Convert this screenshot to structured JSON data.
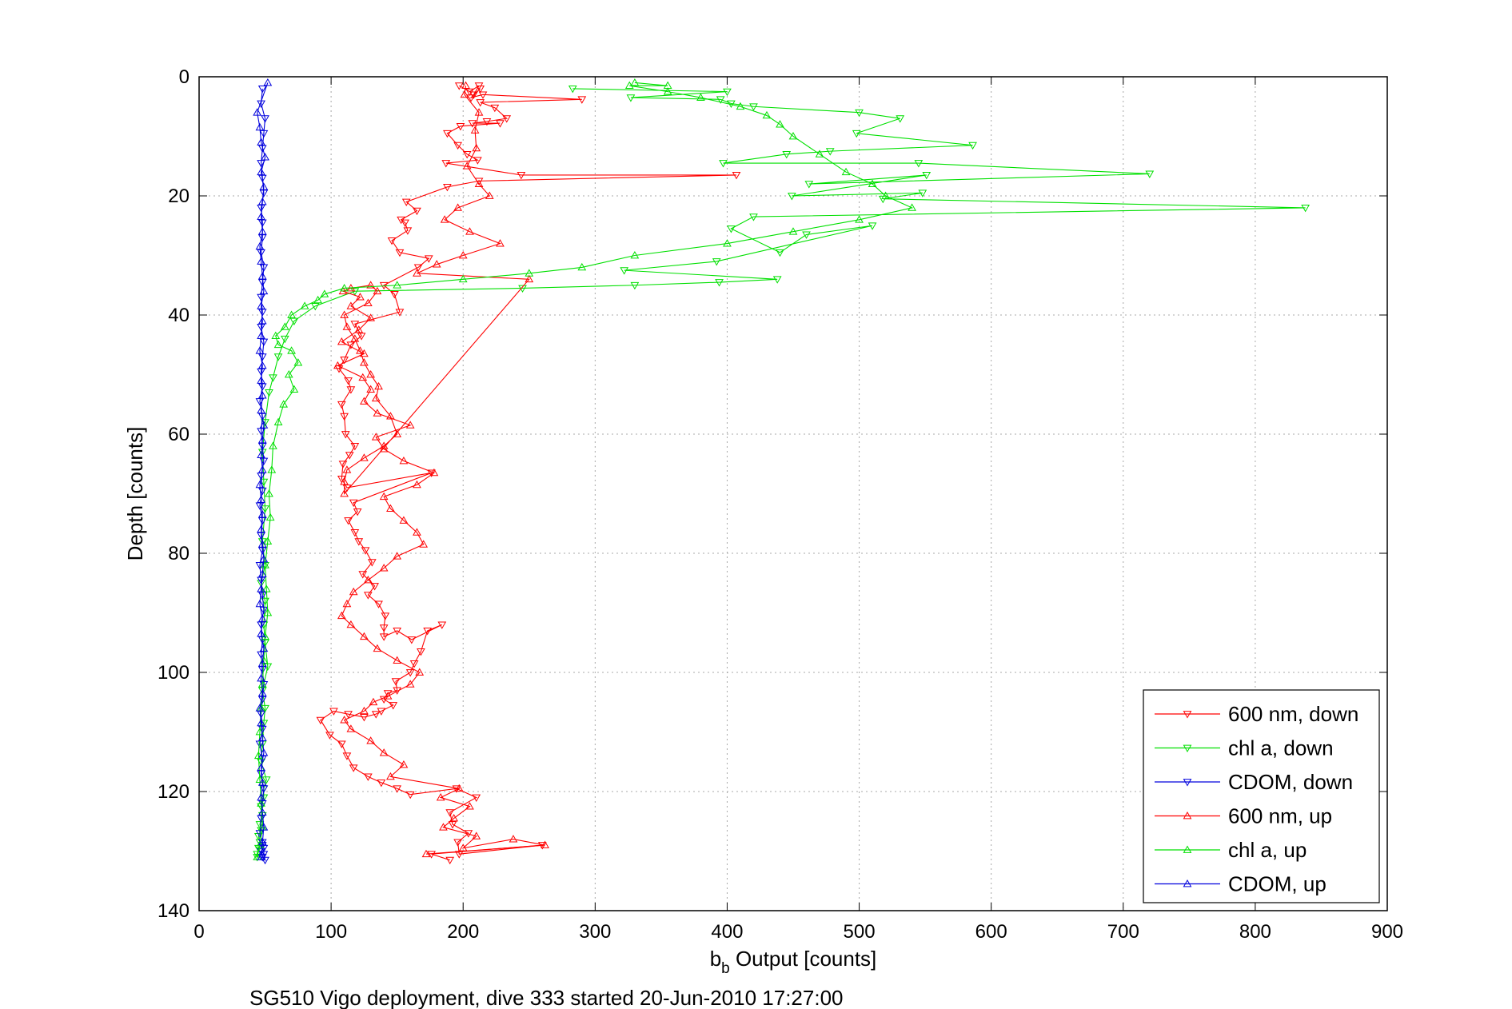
{
  "chart_data": {
    "type": "line",
    "title": "",
    "xlabel_main": "b",
    "xlabel_sub": "b",
    "xlabel_rest": " Output [counts]",
    "ylabel": "Depth [counts]",
    "caption": "SG510 Vigo deployment, dive 333 started 20-Jun-2010 17:27:00",
    "xlim": [
      0,
      900
    ],
    "ylim": [
      140,
      0
    ],
    "y_reversed": true,
    "grid": true,
    "legend_position": "bottom-right",
    "xticks": [
      0,
      100,
      200,
      300,
      400,
      500,
      600,
      700,
      800,
      900
    ],
    "yticks": [
      0,
      20,
      40,
      60,
      80,
      100,
      120,
      140
    ],
    "xtick_labels": [
      "0",
      "100",
      "200",
      "300",
      "400",
      "500",
      "600",
      "700",
      "800",
      "900"
    ],
    "ytick_labels": [
      "0",
      "20",
      "40",
      "60",
      "80",
      "100",
      "120",
      "140"
    ],
    "series": [
      {
        "name": "600 nm, down",
        "color": "#ff0000",
        "marker": "triangle-down",
        "x": [
          197,
          205,
          212,
          208,
          213,
          206,
          215,
          290,
          213,
          224,
          233,
          218,
          207,
          228,
          198,
          188,
          196,
          203,
          211,
          187,
          244,
          407,
          212,
          188,
          157,
          165,
          153,
          156,
          158,
          146,
          152,
          174,
          166,
          140,
          148,
          152,
          118,
          123,
          115,
          110,
          106,
          113,
          115,
          108,
          110,
          111,
          118,
          114,
          109,
          108,
          112,
          176,
          117,
          120,
          113,
          118,
          121,
          126,
          131,
          124,
          133,
          128,
          136,
          141,
          140,
          140,
          150,
          161,
          184,
          173,
          168,
          163,
          160,
          149,
          150,
          143,
          140,
          147,
          138,
          134,
          125,
          113,
          102,
          92,
          99,
          108,
          112,
          117,
          128,
          138,
          150,
          160,
          195,
          210,
          190,
          192,
          204,
          196,
          197,
          260,
          176,
          190
        ],
        "y": [
          1.5,
          2.5,
          1.5,
          3.0,
          2.0,
          3.5,
          3.0,
          3.8,
          4.3,
          5.2,
          7.0,
          7.5,
          7.8,
          7.8,
          8.3,
          9.5,
          11.5,
          13.0,
          14.0,
          14.5,
          16.5,
          16.5,
          17.5,
          18.5,
          21.0,
          22.5,
          24.0,
          24.5,
          25.8,
          27.5,
          29.5,
          30.5,
          32.0,
          35.0,
          36.5,
          39.5,
          41.5,
          43.5,
          45.0,
          47.5,
          49.0,
          51.0,
          52.5,
          55.0,
          57.0,
          60.0,
          62.0,
          63.5,
          65.0,
          67.5,
          69.0,
          66.5,
          71.5,
          73.0,
          74.5,
          76.5,
          78.0,
          79.5,
          81.5,
          83.5,
          85.5,
          87.0,
          88.5,
          90.5,
          92.5,
          94.0,
          93.0,
          94.5,
          92.0,
          93.0,
          96.5,
          98.5,
          100.0,
          101.5,
          103.0,
          103.5,
          104.5,
          105.5,
          106.5,
          107.0,
          107.5,
          107.0,
          106.5,
          108.0,
          110.5,
          112.0,
          114.0,
          116.0,
          117.5,
          118.5,
          119.5,
          120.5,
          119.5,
          121.0,
          123.5,
          125.5,
          127.0,
          128.5,
          130.5,
          129.0,
          130.5,
          131.5
        ]
      },
      {
        "name": "chl a, down",
        "color": "#00e000",
        "marker": "triangle-down",
        "x": [
          283,
          400,
          327,
          395,
          403,
          420,
          500,
          531,
          498,
          586,
          478,
          445,
          397,
          545,
          720,
          462,
          551,
          449,
          548,
          518,
          838,
          420,
          403,
          440,
          460,
          510,
          392,
          322,
          438,
          394,
          330,
          245,
          118,
          88,
          72,
          65,
          60,
          56,
          53,
          50,
          48,
          49,
          50,
          48,
          50,
          47,
          50,
          49,
          50,
          52,
          48,
          50,
          49,
          48,
          47,
          51,
          49,
          49,
          47,
          48,
          46,
          47,
          45,
          46,
          45,
          44,
          44
        ],
        "y": [
          2.0,
          2.5,
          3.5,
          3.8,
          4.5,
          5.0,
          6.0,
          7.0,
          9.5,
          11.5,
          12.5,
          13.0,
          14.5,
          14.5,
          16.3,
          18.0,
          16.5,
          20.0,
          19.5,
          20.5,
          22.0,
          23.5,
          25.5,
          29.5,
          26.5,
          25.0,
          31.0,
          32.5,
          34.0,
          34.5,
          35.0,
          35.5,
          36.0,
          38.5,
          41.0,
          44.0,
          47.0,
          50.5,
          53.0,
          58.0,
          63.0,
          68.0,
          72.5,
          78.0,
          82.0,
          85.0,
          88.0,
          92.0,
          95.0,
          99.0,
          103.0,
          106.0,
          108.5,
          112.0,
          115.0,
          118.0,
          119.5,
          121.0,
          122.5,
          124.0,
          125.5,
          126.5,
          127.5,
          128.5,
          129.5,
          130.5,
          131.0
        ]
      },
      {
        "name": "CDOM, down",
        "color": "#0000dd",
        "marker": "triangle-down",
        "x": [
          48,
          47,
          50,
          49,
          48,
          47,
          48,
          49,
          47,
          48,
          48,
          47,
          49,
          48,
          47,
          48,
          47,
          49,
          48,
          47,
          48,
          46,
          48,
          47,
          48,
          49,
          47,
          48,
          46,
          48,
          47,
          48,
          46,
          47,
          48,
          49,
          47,
          48,
          47,
          48,
          49,
          48,
          47,
          48,
          46,
          48,
          47,
          49,
          48,
          47,
          46,
          48,
          49,
          47,
          49,
          48,
          50,
          48
        ],
        "y": [
          2.0,
          4.5,
          7.0,
          9.5,
          12.0,
          14.5,
          17.0,
          19.5,
          22.0,
          24.5,
          27.0,
          29.5,
          32.0,
          34.5,
          37.0,
          39.5,
          42.0,
          44.5,
          47.0,
          49.5,
          52.0,
          54.5,
          57.0,
          59.5,
          62.0,
          64.5,
          67.0,
          69.5,
          72.0,
          74.5,
          77.0,
          79.5,
          82.0,
          84.5,
          87.0,
          89.5,
          92.0,
          94.5,
          97.0,
          99.5,
          102.0,
          104.5,
          107.0,
          109.5,
          112.0,
          114.5,
          117.0,
          119.5,
          122.0,
          124.5,
          127.0,
          128.5,
          129.5,
          130.0,
          130.5,
          131.0,
          131.5,
          129.0
        ]
      },
      {
        "name": "600 nm, up",
        "color": "#ff0000",
        "marker": "triangle-up",
        "x": [
          172,
          262,
          238,
          200,
          210,
          185,
          193,
          205,
          183,
          197,
          145,
          155,
          140,
          130,
          115,
          110,
          125,
          132,
          143,
          160,
          167,
          150,
          135,
          125,
          115,
          108,
          112,
          117,
          128,
          140,
          150,
          170,
          165,
          155,
          145,
          140,
          165,
          178,
          155,
          140,
          134,
          160,
          135,
          125,
          130,
          124,
          105,
          125,
          108,
          121,
          130,
          115,
          122,
          109,
          115,
          130,
          135,
          128,
          110,
          112,
          118,
          122,
          125,
          130,
          136,
          134,
          145,
          150,
          140,
          125,
          112,
          110,
          110,
          250,
          165,
          180,
          200,
          228,
          205,
          186,
          196,
          220,
          212,
          203,
          210,
          209,
          212,
          201,
          202
        ],
        "y": [
          130.5,
          129.0,
          128.0,
          129.5,
          127.5,
          126.0,
          124.5,
          122.5,
          121.0,
          119.5,
          117.5,
          115.5,
          113.5,
          111.5,
          109.5,
          108.0,
          106.5,
          105.0,
          104.0,
          102.0,
          100.0,
          98.0,
          96.0,
          94.0,
          92.0,
          90.5,
          88.5,
          86.5,
          84.5,
          82.5,
          80.5,
          78.5,
          76.5,
          74.5,
          72.5,
          70.5,
          68.5,
          66.5,
          64.5,
          62.5,
          60.5,
          58.5,
          56.5,
          54.5,
          52.5,
          50.5,
          48.5,
          46.5,
          44.5,
          42.5,
          40.5,
          38.5,
          37.0,
          36.0,
          35.5,
          35.0,
          36.0,
          38.0,
          40.0,
          42.0,
          44.0,
          46.0,
          48.0,
          50.0,
          52.0,
          54.0,
          57.0,
          60.0,
          62.0,
          64.0,
          66.0,
          68.0,
          70.0,
          34.0,
          33.0,
          31.5,
          30.0,
          28.0,
          26.0,
          24.0,
          22.0,
          20.0,
          18.0,
          15.0,
          12.0,
          9.0,
          6.0,
          3.0,
          1.5
        ]
      },
      {
        "name": "chl a, up",
        "color": "#00e000",
        "marker": "triangle-up",
        "x": [
          44,
          46,
          48,
          47,
          46,
          45,
          46,
          47,
          48,
          49,
          50,
          52,
          51,
          50,
          52,
          54,
          53,
          55,
          56,
          60,
          64,
          72,
          68,
          75,
          70,
          60,
          58,
          65,
          70,
          80,
          90,
          95,
          110,
          150,
          200,
          250,
          290,
          330,
          400,
          450,
          500,
          540,
          520,
          510,
          490,
          470,
          450,
          440,
          430,
          410,
          380,
          355,
          326,
          355,
          330
        ],
        "y": [
          131.0,
          129.0,
          126.0,
          122.0,
          118.0,
          114.0,
          110.0,
          106.0,
          102.0,
          98.0,
          94.0,
          90.0,
          86.0,
          82.0,
          78.0,
          74.0,
          70.0,
          66.0,
          62.0,
          58.0,
          55.0,
          52.5,
          50.0,
          48.0,
          46.0,
          45.0,
          43.5,
          42.0,
          40.0,
          38.5,
          37.5,
          36.5,
          35.5,
          35.0,
          34.0,
          33.0,
          32.0,
          30.0,
          28.0,
          26.0,
          24.0,
          22.0,
          20.0,
          18.0,
          16.0,
          13.0,
          10.0,
          8.0,
          6.5,
          5.0,
          3.5,
          2.5,
          1.5,
          1.5,
          1.0
        ]
      },
      {
        "name": "CDOM, up",
        "color": "#0000dd",
        "marker": "triangle-up",
        "x": [
          47,
          48,
          49,
          48,
          47,
          48,
          47,
          49,
          48,
          47,
          46,
          48,
          47,
          48,
          49,
          47,
          48,
          46,
          47,
          48,
          49,
          48,
          47,
          48,
          47,
          46,
          48,
          47,
          48,
          49,
          47,
          48,
          47,
          48,
          46,
          47,
          48,
          47,
          49,
          48,
          47,
          46,
          48,
          47,
          48,
          49,
          47,
          50,
          47,
          46,
          44,
          52
        ],
        "y": [
          131.0,
          128.5,
          126.0,
          123.5,
          121.0,
          118.5,
          116.0,
          113.5,
          111.0,
          108.5,
          106.0,
          103.5,
          101.0,
          98.5,
          96.0,
          93.5,
          91.0,
          88.5,
          86.0,
          83.5,
          81.0,
          78.5,
          76.0,
          73.5,
          71.0,
          68.5,
          66.0,
          63.5,
          61.0,
          58.5,
          56.0,
          53.5,
          51.0,
          48.5,
          46.0,
          43.5,
          41.0,
          38.5,
          36.0,
          33.5,
          31.0,
          28.5,
          26.0,
          23.5,
          21.0,
          18.5,
          16.0,
          13.5,
          11.0,
          8.5,
          6.0,
          1.0
        ]
      }
    ]
  }
}
